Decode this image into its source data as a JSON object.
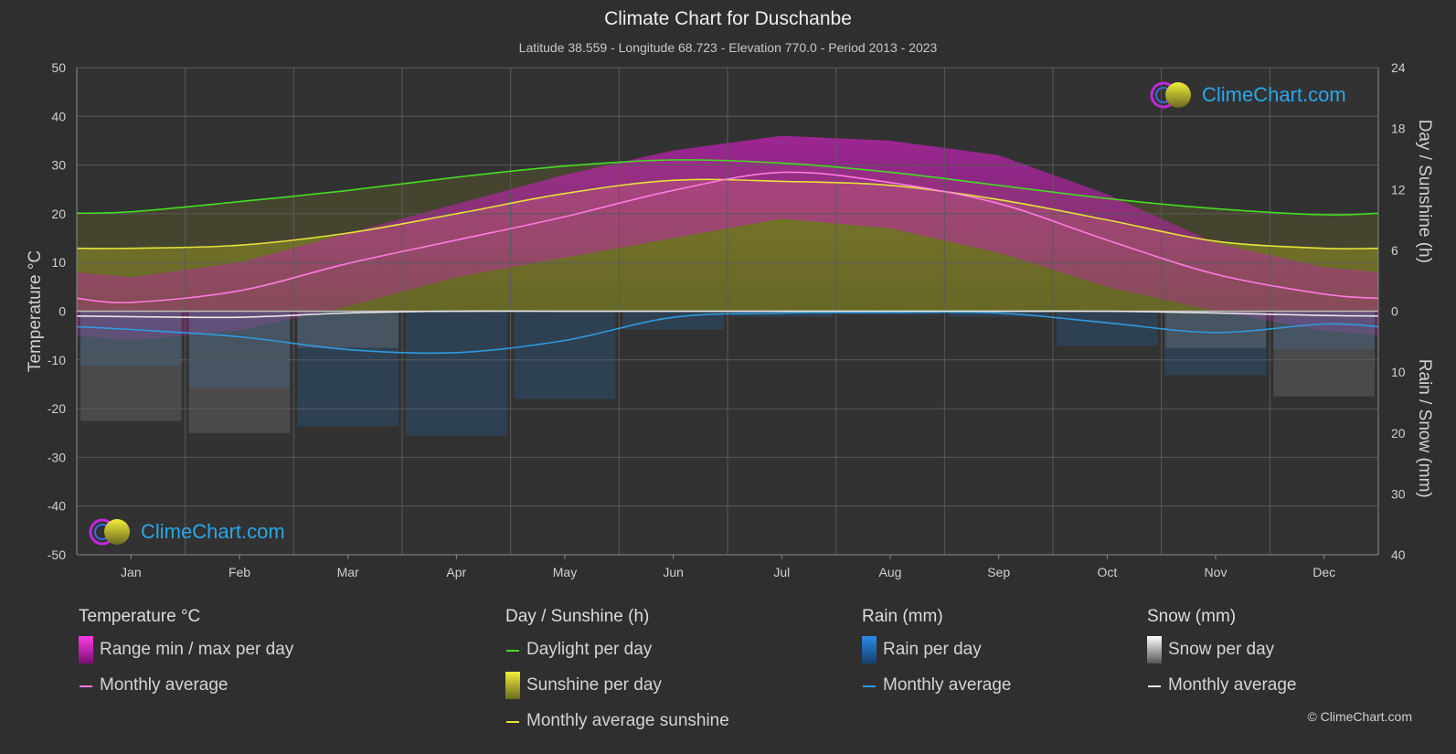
{
  "title": "Climate Chart for Duschanbe",
  "subtitle": "Latitude 38.559 - Longitude 68.723 - Elevation 770.0 - Period 2013 - 2023",
  "brand": "ClimeChart.com",
  "copyright": "© ClimeChart.com",
  "colors": {
    "background": "#2f2f2f",
    "grid": "#5a5a5a",
    "temp_range": "#d020c0",
    "temp_avg": "#ff7ae0",
    "daylight": "#44dd22",
    "sunshine_fill": "#9a9a2a",
    "sunshine_avg": "#e6e23a",
    "rain": "#1e78c8",
    "rain_avg": "#2e9be0",
    "snow": "#8a8a8a",
    "snow_avg": "#e8e8e8",
    "brand": "#2aa7e8"
  },
  "chart_data": {
    "type": "line",
    "categories": [
      "Jan",
      "Feb",
      "Mar",
      "Apr",
      "May",
      "Jun",
      "Jul",
      "Aug",
      "Sep",
      "Oct",
      "Nov",
      "Dec"
    ],
    "axes": {
      "left": {
        "label": "Temperature °C",
        "min": -50,
        "max": 50,
        "ticks": [
          50,
          40,
          30,
          20,
          10,
          0,
          -10,
          -20,
          -30,
          -40,
          -50
        ]
      },
      "right_top": {
        "label": "Day / Sunshine (h)",
        "min": 0,
        "max": 24,
        "ticks": [
          24,
          18,
          12,
          6,
          0
        ]
      },
      "right_bottom": {
        "label": "Rain / Snow (mm)",
        "min": 0,
        "max": 40,
        "ticks": [
          10,
          20,
          30,
          40
        ]
      }
    },
    "grid": true,
    "series": [
      {
        "name": "Monthly average",
        "group": "Temperature °C",
        "axis": "left",
        "values": [
          1.8,
          4.2,
          9.8,
          14.6,
          19.4,
          24.8,
          28.5,
          26.4,
          22.1,
          14.6,
          7.6,
          3.5
        ]
      },
      {
        "name": "Range min / max per day",
        "group": "Temperature °C",
        "axis": "left",
        "min": [
          -6,
          -4,
          1,
          7,
          11,
          15,
          19,
          17,
          12,
          5,
          0,
          -4
        ],
        "max": [
          7,
          10,
          16,
          22,
          28,
          33,
          36,
          35,
          32,
          24,
          14,
          9
        ]
      },
      {
        "name": "Daylight per day",
        "group": "Day / Sunshine (h)",
        "axis": "right_top",
        "values": [
          9.8,
          10.8,
          11.9,
          13.2,
          14.3,
          14.9,
          14.6,
          13.7,
          12.4,
          11.1,
          10.1,
          9.5
        ]
      },
      {
        "name": "Monthly average sunshine",
        "group": "Day / Sunshine (h)",
        "axis": "right_top",
        "values": [
          6.2,
          6.5,
          7.7,
          9.6,
          11.6,
          12.9,
          12.8,
          12.4,
          11.0,
          9.0,
          6.9,
          6.2
        ]
      },
      {
        "name": "Rain monthly average",
        "group": "Rain (mm)",
        "axis": "right_bottom",
        "values": [
          3.0,
          4.2,
          6.3,
          6.8,
          4.8,
          1.0,
          0.3,
          0.2,
          0.3,
          1.9,
          3.5,
          2.1
        ]
      },
      {
        "name": "Snow monthly average",
        "group": "Snow (mm)",
        "axis": "right_bottom",
        "values": [
          0.9,
          1.0,
          0.3,
          0.0,
          0.0,
          0.0,
          0.0,
          0.0,
          0.0,
          0.0,
          0.3,
          0.7
        ]
      }
    ]
  },
  "legend": {
    "temperature": {
      "title": "Temperature °C",
      "range": "Range min / max per day",
      "avg": "Monthly average"
    },
    "sunshine": {
      "title": "Day / Sunshine (h)",
      "daylight": "Daylight per day",
      "sunshine": "Sunshine per day",
      "avg": "Monthly average sunshine"
    },
    "rain": {
      "title": "Rain (mm)",
      "per_day": "Rain per day",
      "avg": "Monthly average"
    },
    "snow": {
      "title": "Snow (mm)",
      "per_day": "Snow per day",
      "avg": "Monthly average"
    }
  }
}
